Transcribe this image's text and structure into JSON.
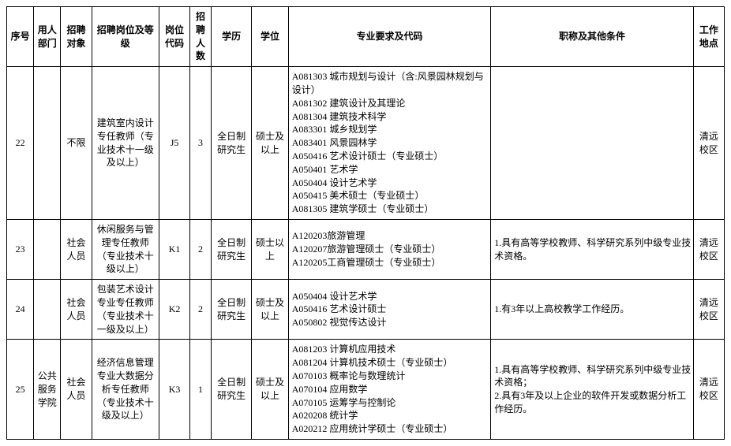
{
  "headers": {
    "seq": "序号",
    "dept": "用人部门",
    "obj": "招聘对象",
    "pos": "招聘岗位及等级",
    "code": "岗位代码",
    "num": "招聘人数",
    "edu": "学历",
    "deg": "学位",
    "maj": "专业要求及代码",
    "other": "职称及其他条件",
    "loc": "工作地点"
  },
  "rows": [
    {
      "seq": "22",
      "dept": "",
      "obj": "不限",
      "pos": "建筑室内设计专任教师（专业技术十一级及以上）",
      "code": "J5",
      "num": "3",
      "edu": "全日制研究生",
      "deg": "硕士及以上",
      "maj": "A081303 城市规划与设计（含:风景园林规划与设计）\nA081302 建筑设计及其理论\nA081304 建筑技术科学\nA083301 城乡规划学\nA083401 风景园林学\nA050416 艺术设计硕士（专业硕士）\nA050401 艺术学\nA050404 设计艺术学\nA050415 美术硕士（专业硕士）\nA081305 建筑学硕士（专业硕士）",
      "other": "",
      "loc": "清远校区"
    },
    {
      "seq": "23",
      "dept": "",
      "obj": "社会人员",
      "pos": "休闲服务与管理专任教师（专业技术十级以上）",
      "code": "K1",
      "num": "2",
      "edu": "全日制研究生",
      "deg": "硕士以上",
      "maj": "A120203旅游管理\nA120207旅游管理硕士（专业硕士）\nA120205工商管理硕士（专业硕士）",
      "other": "1.具有高等学校教师、科学研究系列中级专业技术资格。",
      "loc": "清远校区"
    },
    {
      "seq": "24",
      "dept": "",
      "obj": "社会人员",
      "pos": "包装艺术设计专业专任教师（专业技术十一级及以上）",
      "code": "K2",
      "num": "2",
      "edu": "全日制研究生",
      "deg": "硕士及以上",
      "maj": "A050404 设计艺术学\nA050416 艺术设计硕士\nA050802 视觉传达设计",
      "other": "1.有3年以上高校教学工作经历。",
      "loc": "清远校区"
    },
    {
      "seq": "25",
      "dept": "公共服务学院",
      "obj": "社会人员",
      "pos": "经济信息管理专业大数据分析专任教师（专业技术十级及以上）",
      "code": "K3",
      "num": "1",
      "edu": "全日制研究生",
      "deg": "硕士及以上",
      "maj": "A081203 计算机应用技术\nA081204 计算机技术硕士（专业硕士）\nA070103 概率论与数理统计\nA070104 应用数学\nA070105 运筹学与控制论\nA020208 统计学\nA020212 应用统计学硕士（专业硕士）",
      "other": "1.具有高等学校教师、科学研究系列中级专业技术资格；\n2.具有3年及以上企业的软件开发或数据分析工作经历。",
      "loc": "清远校区"
    }
  ]
}
